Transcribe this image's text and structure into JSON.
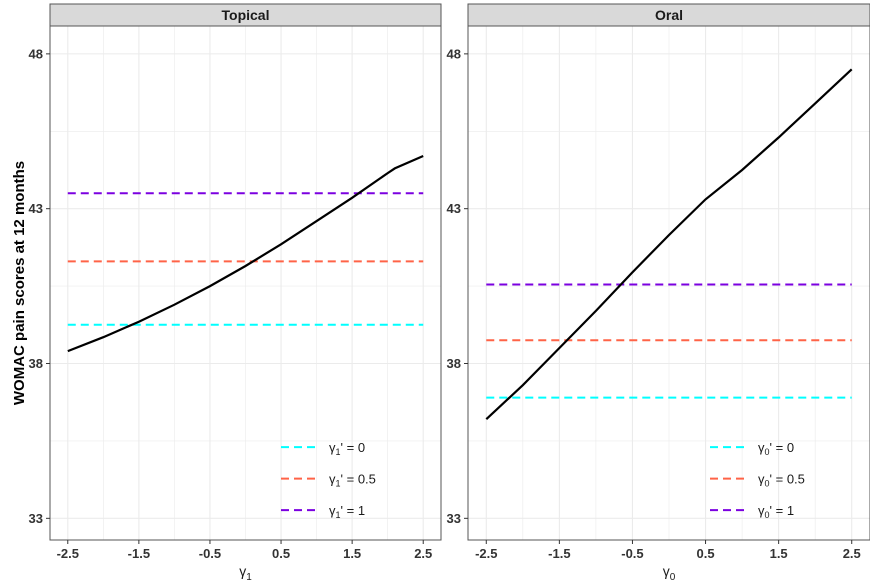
{
  "y_axis_label": "WOMAC pain scores at 12 months",
  "colors": {
    "curve": "#000000",
    "gamma_0": "#00FFFF",
    "gamma_0_5": "#FF6347",
    "gamma_1": "#7B00E0",
    "strip_bg": "#d9d9d9",
    "grid": "#ebebeb"
  },
  "chart_data": [
    {
      "type": "line",
      "facet": "Topical",
      "xlabel_symbol": "γ",
      "xlabel_sub": "1",
      "ylabel": "WOMAC pain scores at 12 months",
      "xlim": [
        -2.75,
        2.75
      ],
      "ylim": [
        32.3,
        48.9
      ],
      "x_ticks": [
        -2.5,
        -1.5,
        -0.5,
        0.5,
        1.5,
        2.5
      ],
      "x_tick_labels": [
        "-2.5",
        "-1.5",
        "-0.5",
        "0.5",
        "1.5",
        "2.5"
      ],
      "y_ticks": [
        33,
        38,
        43,
        48
      ],
      "y_tick_labels": [
        "33",
        "38",
        "43",
        "48"
      ],
      "curve": {
        "x": [
          -2.5,
          -2.0,
          -1.5,
          -1.0,
          -0.5,
          0.0,
          0.5,
          1.0,
          1.5,
          2.0,
          2.1,
          2.5
        ],
        "y": [
          38.4,
          38.85,
          39.35,
          39.9,
          40.5,
          41.15,
          41.85,
          42.6,
          43.35,
          44.15,
          44.3,
          44.7
        ]
      },
      "hlines": [
        {
          "value": 39.25,
          "label_symbol": "γ",
          "label_sub": "1",
          "label_rest": "' = 0",
          "color_key": "gamma_0"
        },
        {
          "value": 41.3,
          "label_symbol": "γ",
          "label_sub": "1",
          "label_rest": "' = 0.5",
          "color_key": "gamma_0_5"
        },
        {
          "value": 43.5,
          "label_symbol": "γ",
          "label_sub": "1",
          "label_rest": "' = 1",
          "color_key": "gamma_1"
        }
      ],
      "legend_position": "bottom-right"
    },
    {
      "type": "line",
      "facet": "Oral",
      "xlabel_symbol": "γ",
      "xlabel_sub": "0",
      "ylabel": "",
      "xlim": [
        -2.75,
        2.75
      ],
      "ylim": [
        32.3,
        48.9
      ],
      "x_ticks": [
        -2.5,
        -1.5,
        -0.5,
        0.5,
        1.5,
        2.5
      ],
      "x_tick_labels": [
        "-2.5",
        "-1.5",
        "-0.5",
        "0.5",
        "1.5",
        "2.5"
      ],
      "y_ticks": [
        33,
        38,
        43,
        48
      ],
      "y_tick_labels": [
        "33",
        "38",
        "43",
        "48"
      ],
      "curve": {
        "x": [
          -2.5,
          -2.0,
          -1.5,
          -1.0,
          -0.5,
          0.0,
          0.5,
          1.0,
          1.5,
          2.0,
          2.5
        ],
        "y": [
          36.2,
          37.3,
          38.5,
          39.7,
          40.95,
          42.15,
          43.3,
          44.25,
          45.3,
          46.4,
          47.5
        ]
      },
      "hlines": [
        {
          "value": 36.9,
          "label_symbol": "γ",
          "label_sub": "0",
          "label_rest": "' = 0",
          "color_key": "gamma_0"
        },
        {
          "value": 38.75,
          "label_symbol": "γ",
          "label_sub": "0",
          "label_rest": "' = 0.5",
          "color_key": "gamma_0_5"
        },
        {
          "value": 40.55,
          "label_symbol": "γ",
          "label_sub": "0",
          "label_rest": "' = 1",
          "color_key": "gamma_1"
        }
      ],
      "legend_position": "bottom-right"
    }
  ]
}
